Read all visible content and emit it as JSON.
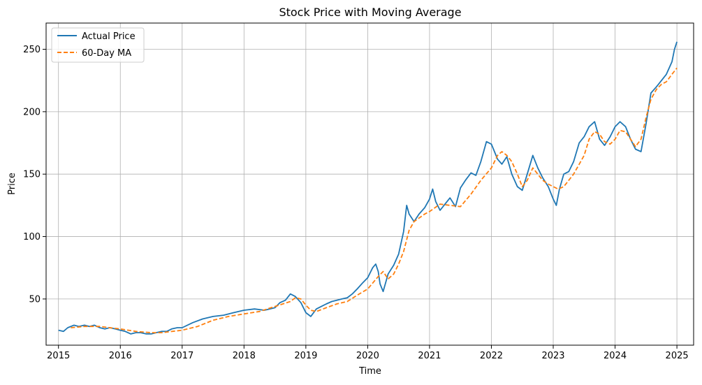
{
  "chart_data": {
    "type": "line",
    "title": "Stock Price with Moving Average",
    "xlabel": "Time",
    "ylabel": "Price",
    "xlim": [
      2014.8,
      2025.27
    ],
    "ylim": [
      13,
      271
    ],
    "xticks": [
      2015,
      2016,
      2017,
      2018,
      2019,
      2020,
      2021,
      2022,
      2023,
      2024,
      2025
    ],
    "yticks": [
      50,
      100,
      150,
      200,
      250
    ],
    "grid": true,
    "legend_position": "top-left",
    "series": [
      {
        "name": "Actual Price",
        "color": "#1f77b4",
        "style": "solid",
        "x": [
          2015.0,
          2015.08,
          2015.15,
          2015.25,
          2015.33,
          2015.42,
          2015.5,
          2015.58,
          2015.67,
          2015.75,
          2015.83,
          2015.92,
          2016.0,
          2016.08,
          2016.17,
          2016.25,
          2016.33,
          2016.42,
          2016.5,
          2016.58,
          2016.67,
          2016.75,
          2016.83,
          2016.92,
          2017.0,
          2017.17,
          2017.33,
          2017.5,
          2017.67,
          2017.83,
          2018.0,
          2018.17,
          2018.33,
          2018.5,
          2018.58,
          2018.67,
          2018.75,
          2018.83,
          2018.92,
          2019.0,
          2019.08,
          2019.17,
          2019.25,
          2019.33,
          2019.42,
          2019.5,
          2019.58,
          2019.67,
          2019.75,
          2019.83,
          2019.92,
          2020.0,
          2020.08,
          2020.13,
          2020.17,
          2020.2,
          2020.25,
          2020.33,
          2020.42,
          2020.5,
          2020.58,
          2020.63,
          2020.67,
          2020.75,
          2020.83,
          2020.92,
          2021.0,
          2021.05,
          2021.1,
          2021.17,
          2021.25,
          2021.33,
          2021.42,
          2021.5,
          2021.58,
          2021.67,
          2021.75,
          2021.83,
          2021.92,
          2022.0,
          2022.05,
          2022.1,
          2022.17,
          2022.25,
          2022.33,
          2022.42,
          2022.5,
          2022.58,
          2022.67,
          2022.75,
          2022.83,
          2022.92,
          2023.0,
          2023.05,
          2023.1,
          2023.17,
          2023.25,
          2023.33,
          2023.42,
          2023.5,
          2023.58,
          2023.67,
          2023.75,
          2023.83,
          2023.92,
          2024.0,
          2024.08,
          2024.17,
          2024.25,
          2024.33,
          2024.42,
          2024.5,
          2024.58,
          2024.67,
          2024.75,
          2024.83,
          2024.92,
          2024.96,
          2025.0
        ],
        "y": [
          25,
          24,
          27,
          29,
          28,
          29,
          28,
          29,
          27,
          26,
          27,
          26,
          25,
          24,
          22,
          23,
          23,
          22,
          22,
          23,
          24,
          24,
          26,
          27,
          27,
          31,
          34,
          36,
          37,
          39,
          41,
          42,
          41,
          43,
          47,
          49,
          54,
          52,
          47,
          39,
          36,
          42,
          44,
          46,
          48,
          49,
          50,
          51,
          54,
          58,
          63,
          67,
          75,
          78,
          72,
          62,
          56,
          70,
          77,
          86,
          104,
          125,
          118,
          112,
          118,
          123,
          130,
          138,
          128,
          121,
          126,
          131,
          124,
          139,
          145,
          151,
          149,
          160,
          176,
          174,
          168,
          162,
          158,
          164,
          150,
          140,
          137,
          150,
          165,
          155,
          147,
          140,
          130,
          125,
          138,
          150,
          152,
          160,
          175,
          180,
          188,
          192,
          178,
          173,
          180,
          188,
          192,
          188,
          178,
          170,
          168,
          190,
          215,
          220,
          225,
          230,
          240,
          250,
          256
        ]
      },
      {
        "name": "60-Day MA",
        "color": "#ff7f0e",
        "style": "dashed",
        "x": [
          2015.2,
          2015.42,
          2015.67,
          2015.83,
          2016.0,
          2016.25,
          2016.5,
          2016.67,
          2017.0,
          2017.25,
          2017.5,
          2017.75,
          2018.0,
          2018.25,
          2018.5,
          2018.75,
          2018.83,
          2018.92,
          2019.0,
          2019.08,
          2019.17,
          2019.33,
          2019.5,
          2019.67,
          2019.83,
          2020.0,
          2020.17,
          2020.25,
          2020.33,
          2020.42,
          2020.5,
          2020.58,
          2020.67,
          2020.75,
          2020.92,
          2021.0,
          2021.17,
          2021.33,
          2021.5,
          2021.67,
          2021.83,
          2022.0,
          2022.1,
          2022.17,
          2022.25,
          2022.33,
          2022.42,
          2022.5,
          2022.58,
          2022.67,
          2022.75,
          2022.83,
          2022.92,
          2023.0,
          2023.08,
          2023.17,
          2023.33,
          2023.5,
          2023.58,
          2023.67,
          2023.75,
          2023.83,
          2023.92,
          2024.0,
          2024.08,
          2024.17,
          2024.25,
          2024.33,
          2024.42,
          2024.5,
          2024.58,
          2024.67,
          2024.75,
          2024.83,
          2024.92,
          2025.0
        ],
        "y": [
          27,
          28,
          28,
          27,
          26,
          24,
          23,
          23,
          25,
          28,
          33,
          36,
          38,
          40,
          44,
          48,
          51,
          50,
          45,
          41,
          40,
          43,
          46,
          48,
          53,
          58,
          68,
          72,
          66,
          70,
          78,
          88,
          105,
          112,
          118,
          120,
          126,
          125,
          124,
          134,
          145,
          155,
          165,
          168,
          165,
          160,
          150,
          140,
          145,
          155,
          150,
          145,
          142,
          140,
          138,
          140,
          150,
          165,
          178,
          184,
          182,
          176,
          174,
          178,
          185,
          184,
          178,
          172,
          178,
          195,
          210,
          218,
          222,
          224,
          230,
          235
        ]
      }
    ]
  }
}
